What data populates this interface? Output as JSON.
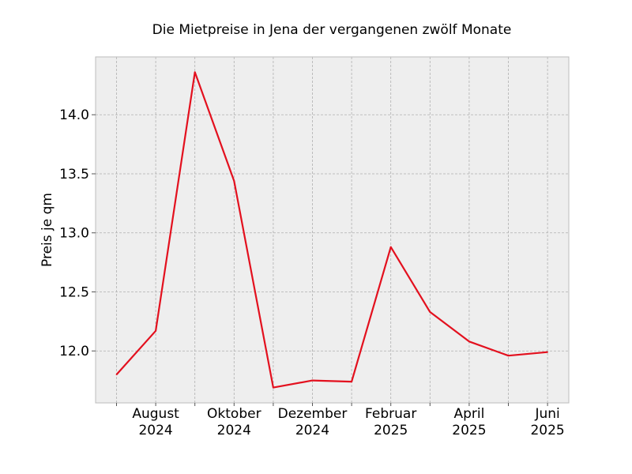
{
  "chart_data": {
    "type": "line",
    "title": "Die Mietpreise in Jena der vergangenen zwölf Monate",
    "xlabel": "",
    "ylabel": "Preis je qm",
    "x": [
      "2024-07",
      "2024-08",
      "2024-09",
      "2024-10",
      "2024-11",
      "2024-12",
      "2025-01",
      "2025-02",
      "2025-03",
      "2025-04",
      "2025-05",
      "2025-06"
    ],
    "xticks": [
      {
        "x": "2024-08",
        "label": [
          "August",
          "2024"
        ]
      },
      {
        "x": "2024-10",
        "label": [
          "Oktober",
          "2024"
        ]
      },
      {
        "x": "2024-12",
        "label": [
          "Dezember",
          "2024"
        ]
      },
      {
        "x": "2025-02",
        "label": [
          "Februar",
          "2025"
        ]
      },
      {
        "x": "2025-04",
        "label": [
          "April",
          "2025"
        ]
      },
      {
        "x": "2025-06",
        "label": [
          "Juni",
          "2025"
        ]
      }
    ],
    "series": [
      {
        "values": [
          11.8,
          12.17,
          14.36,
          13.44,
          11.69,
          11.75,
          11.74,
          12.88,
          12.33,
          12.08,
          11.96,
          11.99
        ],
        "color": "#e3101e"
      }
    ],
    "ylim": [
      11.56,
      14.49
    ],
    "yticks": [
      12.0,
      12.5,
      13.0,
      13.5,
      14.0
    ],
    "grid": true,
    "style": {
      "plot_background": "#eeeeee",
      "grid_color": "#b0b0b0",
      "frame_color": "#bcbcbc"
    }
  }
}
